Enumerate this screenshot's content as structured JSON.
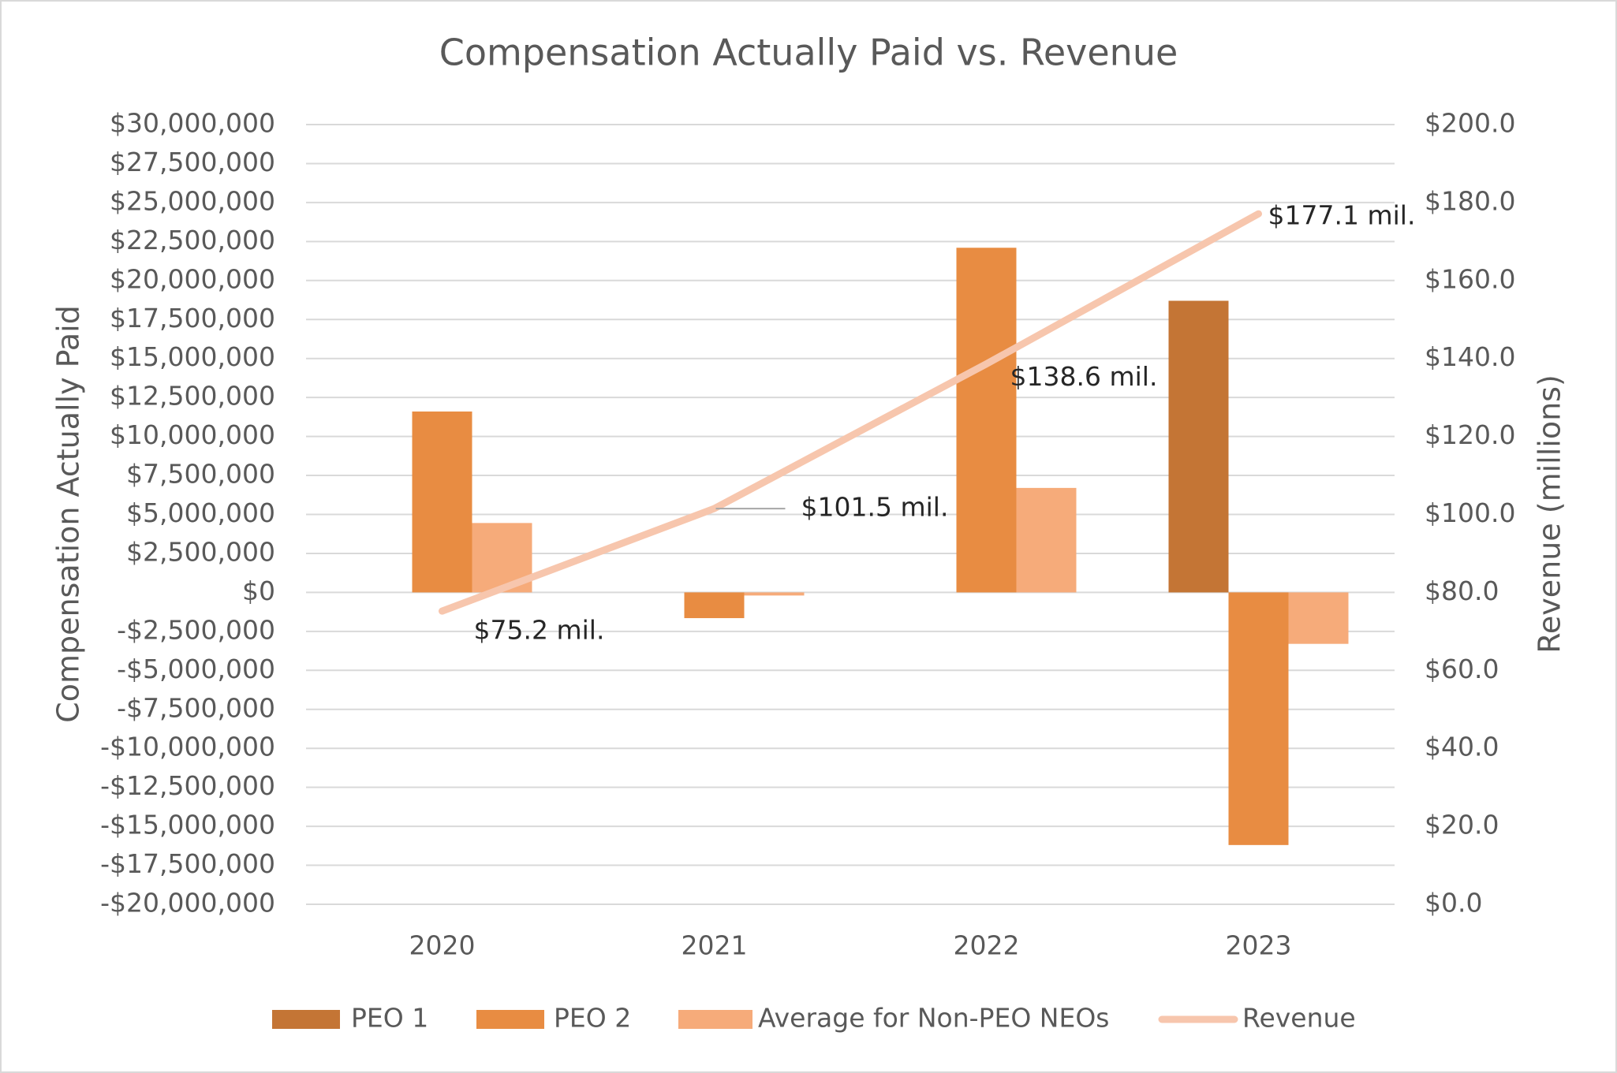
{
  "chart_data": {
    "type": "bar",
    "title": "Compensation Actually Paid vs. Revenue",
    "y_label": "Compensation Actually Paid",
    "y2_label": "Revenue (millions)",
    "categories": [
      "2020",
      "2021",
      "2022",
      "2023"
    ],
    "series": [
      {
        "name": "PEO 1",
        "type": "bar",
        "color": "#c47535",
        "values": [
          null,
          null,
          null,
          18700000
        ]
      },
      {
        "name": "PEO 2",
        "type": "bar",
        "color": "#e88c42",
        "values": [
          11600000,
          -1650000,
          22100000,
          -16200000
        ]
      },
      {
        "name": "Average for Non-PEO NEOs",
        "type": "bar",
        "color": "#f6ab7a",
        "values": [
          4450000,
          -200000,
          6700000,
          -3300000
        ]
      },
      {
        "name": "Revenue",
        "type": "line",
        "axis": "y2",
        "color": "#f7c6ad",
        "values": [
          75.2,
          101.5,
          138.6,
          177.1
        ],
        "value_labels": [
          "$75.2 mil.",
          "$101.5 mil.",
          "$138.6 mil.",
          "$177.1 mil."
        ]
      }
    ],
    "ylim": [
      -20000000,
      30000000
    ],
    "yticks": [
      {
        "value": 30000000,
        "label": "$30,000,000"
      },
      {
        "value": 27500000,
        "label": "$27,500,000"
      },
      {
        "value": 25000000,
        "label": "$25,000,000"
      },
      {
        "value": 22500000,
        "label": "$22,500,000"
      },
      {
        "value": 20000000,
        "label": "$20,000,000"
      },
      {
        "value": 17500000,
        "label": "$17,500,000"
      },
      {
        "value": 15000000,
        "label": "$15,000,000"
      },
      {
        "value": 12500000,
        "label": "$12,500,000"
      },
      {
        "value": 10000000,
        "label": "$10,000,000"
      },
      {
        "value": 7500000,
        "label": "$7,500,000"
      },
      {
        "value": 5000000,
        "label": "$5,000,000"
      },
      {
        "value": 2500000,
        "label": "$2,500,000"
      },
      {
        "value": 0,
        "label": "$0"
      },
      {
        "value": -2500000,
        "label": "-$2,500,000"
      },
      {
        "value": -5000000,
        "label": "-$5,000,000"
      },
      {
        "value": -7500000,
        "label": "-$7,500,000"
      },
      {
        "value": -10000000,
        "label": "-$10,000,000"
      },
      {
        "value": -12500000,
        "label": "-$12,500,000"
      },
      {
        "value": -15000000,
        "label": "-$15,000,000"
      },
      {
        "value": -17500000,
        "label": "-$17,500,000"
      },
      {
        "value": -20000000,
        "label": "-$20,000,000"
      }
    ],
    "y2lim": [
      0,
      200
    ],
    "y2ticks": [
      {
        "value": 200,
        "label": "$200.0"
      },
      {
        "value": 180,
        "label": "$180.0"
      },
      {
        "value": 160,
        "label": "$160.0"
      },
      {
        "value": 140,
        "label": "$140.0"
      },
      {
        "value": 120,
        "label": "$120.0"
      },
      {
        "value": 100,
        "label": "$100.0"
      },
      {
        "value": 80,
        "label": "$80.0"
      },
      {
        "value": 60,
        "label": "$60.0"
      },
      {
        "value": 40,
        "label": "$40.0"
      },
      {
        "value": 20,
        "label": "$20.0"
      },
      {
        "value": 0,
        "label": "$0.0"
      }
    ],
    "grid": true,
    "legend": "bottom"
  }
}
